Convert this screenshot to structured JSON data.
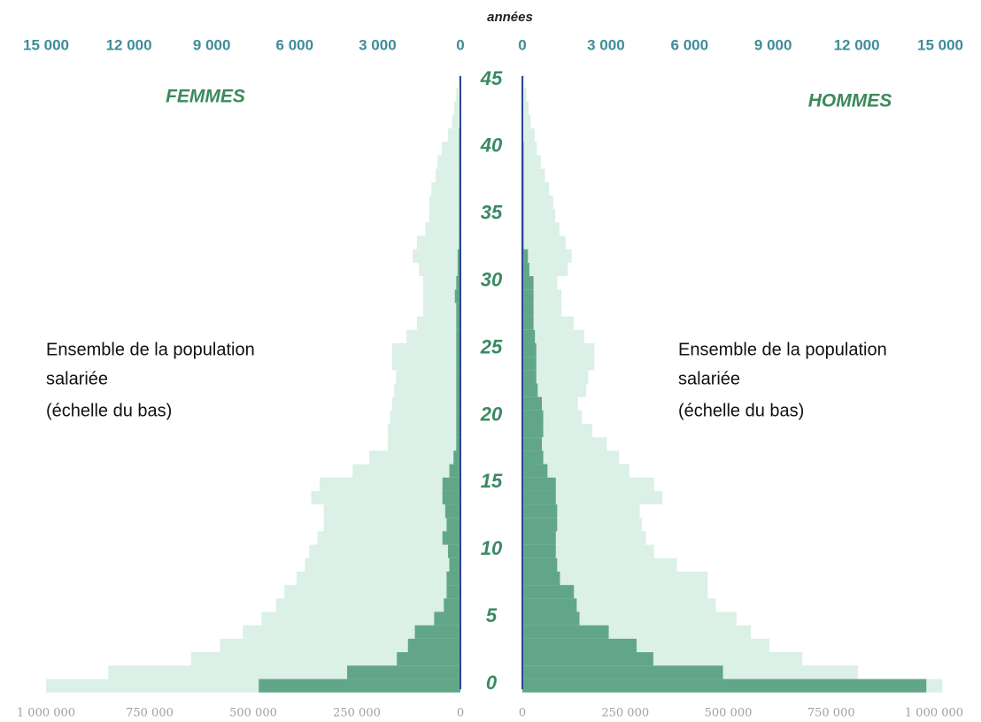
{
  "chart_data": {
    "type": "pyramid",
    "age_label": "années",
    "ages": [
      0,
      1,
      2,
      3,
      4,
      5,
      6,
      7,
      8,
      9,
      10,
      11,
      12,
      13,
      14,
      15,
      16,
      17,
      18,
      19,
      20,
      21,
      22,
      23,
      24,
      25,
      26,
      27,
      28,
      29,
      30,
      31,
      32,
      33,
      34,
      35,
      36,
      37,
      38,
      39,
      40,
      41,
      42,
      43,
      44,
      45
    ],
    "age_lim": [
      0,
      45
    ],
    "age_ticks": [
      0,
      5,
      10,
      15,
      20,
      25,
      30,
      35,
      40,
      45
    ],
    "panels": [
      {
        "side": "left",
        "title": "FEMMES",
        "annotation": [
          "Ensemble de la population",
          "salariée",
          "(échelle du bas)"
        ],
        "xlim": [
          0,
          1000000
        ],
        "xticks": [
          0,
          {
            "value": 250000,
            "label": "250 000"
          },
          {
            "value": 500000,
            "label": "500 000"
          },
          {
            "value": 750000,
            "label": "750 000"
          },
          {
            "value": 1000000,
            "label": "1 000 000"
          }
        ],
        "x2lim": [
          0,
          15000
        ],
        "x2ticks": [
          0,
          {
            "value": 3000,
            "label": "3 000"
          },
          {
            "value": 6000,
            "label": "6 000"
          },
          {
            "value": 9000,
            "label": "9 000"
          },
          {
            "value": 12000,
            "label": "12 000"
          },
          {
            "value": 15000,
            "label": "15 000"
          }
        ],
        "series": [
          {
            "color": "#dbf0e6",
            "axis": "x",
            "values": [
              1000000,
              850000,
              650000,
              580000,
              525000,
              480000,
              445000,
              425000,
              395000,
              375000,
              365000,
              345000,
              330000,
              330000,
              360000,
              340000,
              260000,
              220000,
              175000,
              175000,
              170000,
              165000,
              160000,
              155000,
              165000,
              165000,
              130000,
              105000,
              90000,
              90000,
              90000,
              100000,
              115000,
              105000,
              85000,
              75000,
              75000,
              70000,
              60000,
              55000,
              45000,
              30000,
              20000,
              15000,
              10000,
              5000
            ]
          },
          {
            "color": "#62a68a",
            "axis": "x2",
            "values": [
              7300,
              4100,
              2300,
              1900,
              1650,
              950,
              600,
              500,
              500,
              400,
              450,
              650,
              500,
              550,
              650,
              650,
              400,
              250,
              150,
              150,
              150,
              150,
              150,
              150,
              150,
              150,
              150,
              150,
              150,
              200,
              150,
              100,
              100,
              50,
              50,
              50,
              50,
              50,
              50,
              50,
              50,
              50,
              0,
              0,
              0,
              0
            ]
          }
        ]
      },
      {
        "side": "right",
        "title": "HOMMES",
        "annotation": [
          "Ensemble de la population",
          "salariée",
          "(échelle du bas)"
        ],
        "xlim": [
          0,
          1000000
        ],
        "xticks": [
          0,
          {
            "value": 250000,
            "label": "250 000"
          },
          {
            "value": 500000,
            "label": "500 000"
          },
          {
            "value": 750000,
            "label": "750 000"
          },
          {
            "value": 1000000,
            "label": "1 000 000"
          }
        ],
        "x2lim": [
          0,
          15000
        ],
        "x2ticks": [
          0,
          {
            "value": 3000,
            "label": "3 000"
          },
          {
            "value": 6000,
            "label": "6 000"
          },
          {
            "value": 9000,
            "label": "9 000"
          },
          {
            "value": 12000,
            "label": "12 000"
          },
          {
            "value": 15000,
            "label": "15 000"
          }
        ],
        "series": [
          {
            "color": "#dbf0e6",
            "axis": "x",
            "values": [
              1020000,
              815000,
              680000,
              600000,
              555000,
              520000,
              470000,
              450000,
              450000,
              375000,
              320000,
              300000,
              290000,
              285000,
              340000,
              320000,
              260000,
              235000,
              205000,
              170000,
              145000,
              135000,
              155000,
              160000,
              175000,
              175000,
              150000,
              125000,
              95000,
              95000,
              85000,
              110000,
              120000,
              105000,
              90000,
              80000,
              75000,
              65000,
              55000,
              45000,
              35000,
              30000,
              20000,
              15000,
              10000,
              5000
            ]
          },
          {
            "color": "#62a68a",
            "axis": "x2",
            "values": [
              14500,
              7200,
              4700,
              4100,
              3100,
              2050,
              1950,
              1850,
              1350,
              1250,
              1200,
              1200,
              1250,
              1250,
              1200,
              1200,
              900,
              750,
              700,
              750,
              750,
              700,
              550,
              500,
              500,
              500,
              450,
              400,
              400,
              400,
              400,
              250,
              200,
              50,
              50,
              50,
              50,
              50,
              50,
              50,
              50,
              0,
              0,
              0,
              0,
              0
            ]
          }
        ]
      }
    ]
  }
}
